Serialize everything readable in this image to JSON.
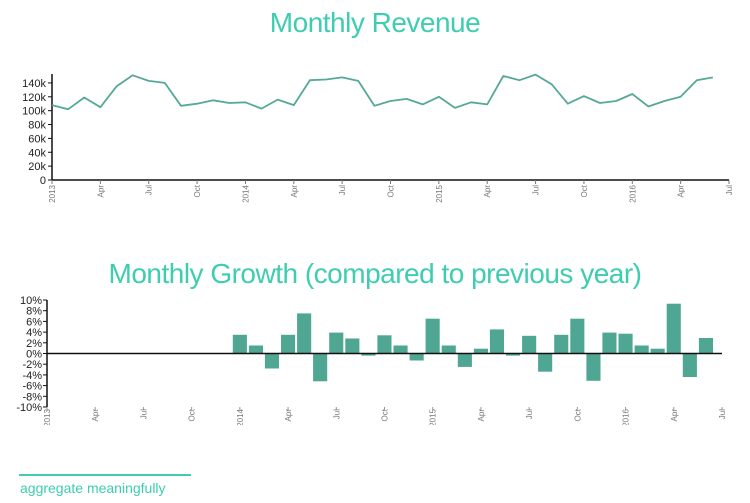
{
  "footer": {
    "label": "aggregate meaningfully"
  },
  "colors": {
    "title": "#3ecdb0",
    "line": "#56a898",
    "bar": "#4fa693",
    "axis": "#111111"
  },
  "chart_data": [
    {
      "type": "line",
      "title": "Monthly Revenue",
      "ylim": [
        0,
        150000
      ],
      "yticks": [
        "0",
        "20k",
        "40k",
        "60k",
        "80k",
        "100k",
        "120k",
        "140k"
      ],
      "ytick_values": [
        0,
        20000,
        40000,
        60000,
        80000,
        100000,
        120000,
        140000
      ],
      "xticks": [
        "2013",
        "Apr",
        "Jul",
        "Oct",
        "2014",
        "Apr",
        "Jul",
        "Oct",
        "2015",
        "Apr",
        "Jul",
        "Oct",
        "2016",
        "Apr",
        "Jul"
      ],
      "xlim": [
        "2013-01",
        "2016-07"
      ],
      "x": [
        "2013-01",
        "2013-02",
        "2013-03",
        "2013-04",
        "2013-05",
        "2013-06",
        "2013-07",
        "2013-08",
        "2013-09",
        "2013-10",
        "2013-11",
        "2013-12",
        "2014-01",
        "2014-02",
        "2014-03",
        "2014-04",
        "2014-05",
        "2014-06",
        "2014-07",
        "2014-08",
        "2014-09",
        "2014-10",
        "2014-11",
        "2014-12",
        "2015-01",
        "2015-02",
        "2015-03",
        "2015-04",
        "2015-05",
        "2015-06",
        "2015-07",
        "2015-08",
        "2015-09",
        "2015-10",
        "2015-11",
        "2015-12",
        "2016-01",
        "2016-02",
        "2016-03",
        "2016-04",
        "2016-05",
        "2016-06"
      ],
      "values": [
        108000,
        102000,
        119000,
        105000,
        135000,
        151000,
        143000,
        140000,
        107000,
        110000,
        115000,
        111000,
        112000,
        103000,
        116000,
        108000,
        144000,
        145000,
        148000,
        143000,
        107000,
        114000,
        117000,
        109000,
        120000,
        104000,
        112000,
        109000,
        150000,
        144000,
        152000,
        138000,
        110000,
        121000,
        111000,
        114000,
        124000,
        106000,
        114000,
        120000,
        144000,
        148000
      ]
    },
    {
      "type": "bar",
      "title": "Monthly Growth (compared to previous year)",
      "ylim": [
        -10,
        10
      ],
      "yticks": [
        "-10%",
        "-8%",
        "-6%",
        "-4%",
        "-2%",
        "0%",
        "2%",
        "4%",
        "6%",
        "8%",
        "10%"
      ],
      "ytick_values": [
        -10,
        -8,
        -6,
        -4,
        -2,
        0,
        2,
        4,
        6,
        8,
        10
      ],
      "xticks": [
        "2013",
        "Apr",
        "Jul",
        "Oct",
        "2014",
        "Apr",
        "Jul",
        "Oct",
        "2015",
        "Apr",
        "Jul",
        "Oct",
        "2016",
        "Apr",
        "Jul"
      ],
      "xlim": [
        "2013-01",
        "2016-07"
      ],
      "x": [
        "2014-01",
        "2014-02",
        "2014-03",
        "2014-04",
        "2014-05",
        "2014-06",
        "2014-07",
        "2014-08",
        "2014-09",
        "2014-10",
        "2014-11",
        "2014-12",
        "2015-01",
        "2015-02",
        "2015-03",
        "2015-04",
        "2015-05",
        "2015-06",
        "2015-07",
        "2015-08",
        "2015-09",
        "2015-10",
        "2015-11",
        "2015-12",
        "2016-01",
        "2016-02",
        "2016-03",
        "2016-04",
        "2016-05",
        "2016-06"
      ],
      "values": [
        3.5,
        1.5,
        -2.8,
        3.5,
        7.5,
        -5.2,
        3.9,
        2.8,
        -0.4,
        3.4,
        1.5,
        -1.3,
        6.5,
        1.5,
        -2.5,
        0.9,
        4.5,
        -0.4,
        3.3,
        -3.4,
        3.5,
        6.5,
        -5.1,
        3.9,
        3.7,
        1.5,
        0.9,
        9.3,
        -4.4,
        2.9
      ]
    }
  ]
}
